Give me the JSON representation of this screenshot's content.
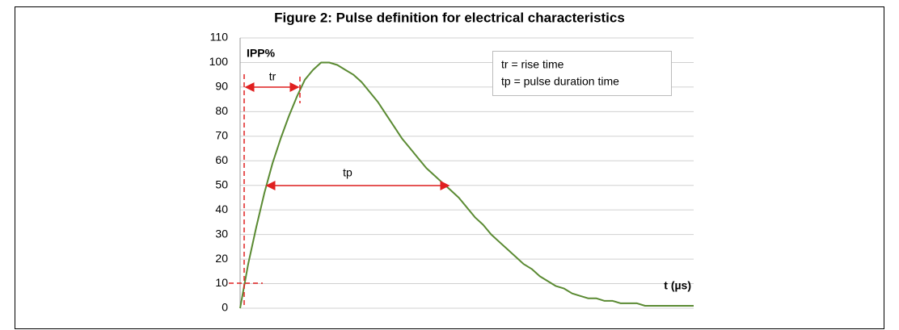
{
  "chart_data": {
    "type": "line",
    "title": "Figure 2: Pulse definition for electrical characteristics",
    "y_label": "IPP%",
    "x_label": "t (µs)",
    "legend_lines": [
      "tr = rise time",
      "tp = pulse duration time"
    ],
    "annotations": {
      "rise": "tr",
      "pulse": "tp"
    },
    "color": "#5a8a32",
    "values": [
      0,
      18,
      33,
      47,
      59,
      69,
      78,
      86,
      93,
      97,
      100,
      100,
      99,
      97,
      95,
      92,
      88,
      84,
      79,
      74,
      69,
      65,
      61,
      57,
      54,
      51,
      48,
      45,
      41,
      37,
      34,
      30,
      27,
      24,
      21,
      18,
      16,
      13,
      11,
      9,
      8,
      6,
      5,
      4,
      4,
      3,
      3,
      2,
      2,
      2,
      1,
      1,
      1,
      1,
      1,
      1,
      1
    ],
    "ylim": [
      0,
      110
    ],
    "yticks": [
      0,
      10,
      20,
      30,
      40,
      50,
      60,
      70,
      80,
      90,
      100,
      110
    ],
    "grid": true
  }
}
